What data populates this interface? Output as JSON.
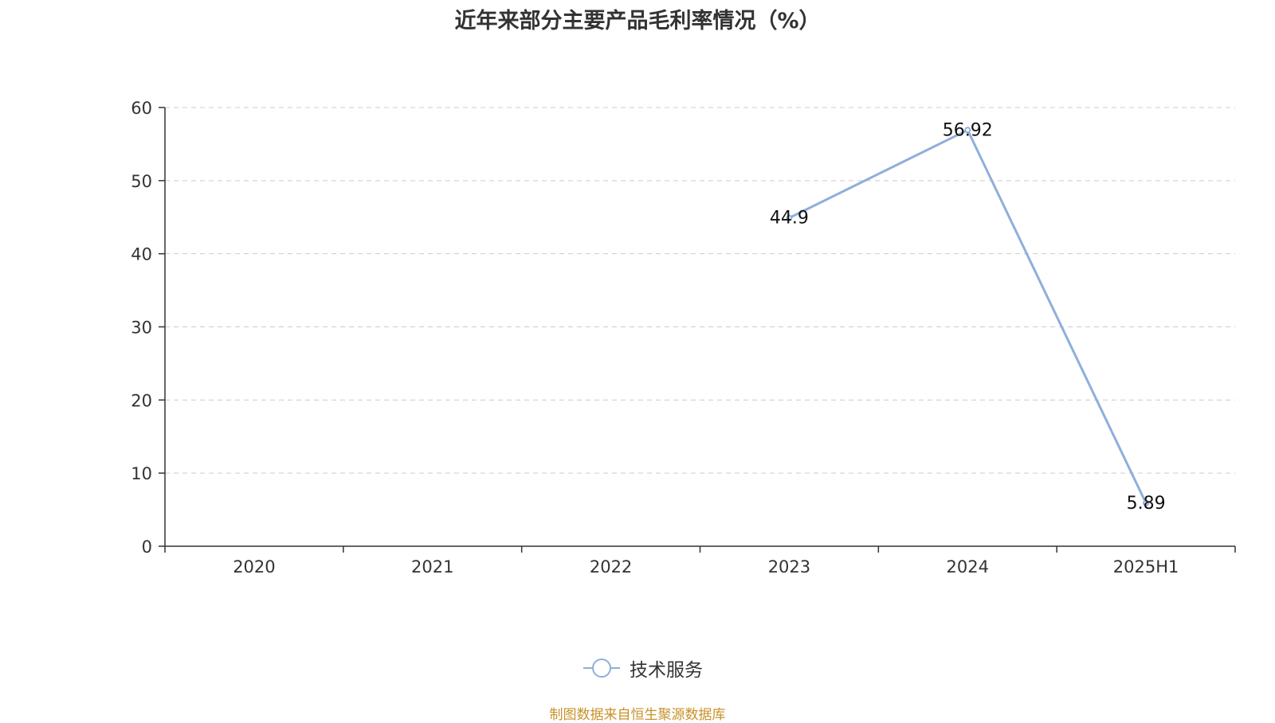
{
  "chart_data": {
    "type": "line",
    "title": "近年来部分主要产品毛利率情况（%）",
    "categories": [
      "2020",
      "2021",
      "2022",
      "2023",
      "2024",
      "2025H1"
    ],
    "series": [
      {
        "name": "技术服务",
        "values": [
          null,
          null,
          null,
          44.9,
          56.92,
          5.89
        ],
        "labels": [
          "",
          "",
          "",
          "44.9",
          "56.92",
          "5.89"
        ],
        "color": "#8eafdb"
      }
    ],
    "ylim": [
      0,
      60
    ],
    "yticks": [
      "0",
      "10",
      "20",
      "30",
      "40",
      "50",
      "60"
    ],
    "grid": true,
    "legend_position": "bottom"
  },
  "source_text": "制图数据来自恒生聚源数据库",
  "colors": {
    "axis": "#333333",
    "grid": "#cccccc",
    "source": "#c8922a"
  }
}
